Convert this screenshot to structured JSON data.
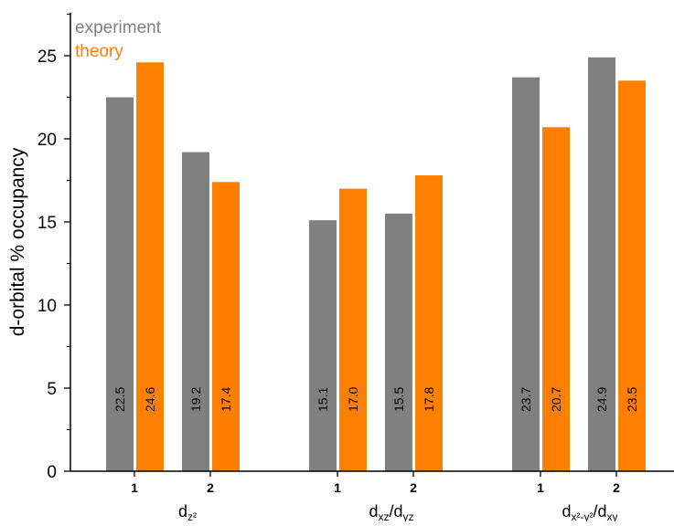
{
  "chart_data": {
    "type": "bar",
    "ylabel": "d-orbital % occupancy",
    "ylim": [
      0,
      27.5
    ],
    "yticks": [
      0,
      5,
      10,
      15,
      20,
      25
    ],
    "grid": false,
    "legend_position": "top-left",
    "x_tick_labels": [
      "1",
      "2"
    ],
    "groups": [
      {
        "label_main": "d",
        "label_sub": "z²",
        "label_sub2": "",
        "label_sep": "",
        "label_tail_main": "",
        "label_tail_sub": ""
      },
      {
        "label_main": "d",
        "label_sub": "xz",
        "label_sub2": "",
        "label_sep": "/",
        "label_tail_main": "d",
        "label_tail_sub": "yz"
      },
      {
        "label_main": "d",
        "label_sub": "x²",
        "label_sub2": "-y²",
        "label_sep": "/",
        "label_tail_main": "d",
        "label_tail_sub": "xy"
      }
    ],
    "series": [
      {
        "name": "experiment",
        "color": "#808080",
        "values": [
          [
            22.5,
            19.2
          ],
          [
            15.1,
            15.5
          ],
          [
            23.7,
            24.9
          ]
        ],
        "data_labels": [
          [
            "22.5",
            "19.2"
          ],
          [
            "15.1",
            "15.5"
          ],
          [
            "23.7",
            "24.9"
          ]
        ]
      },
      {
        "name": "theory",
        "color": "#ff8000",
        "values": [
          [
            24.6,
            17.4
          ],
          [
            17.0,
            17.8
          ],
          [
            20.7,
            23.5
          ]
        ],
        "data_labels": [
          [
            "24.6",
            "17.4"
          ],
          [
            "17.0",
            "17.8"
          ],
          [
            "20.7",
            "23.5"
          ]
        ]
      }
    ]
  }
}
